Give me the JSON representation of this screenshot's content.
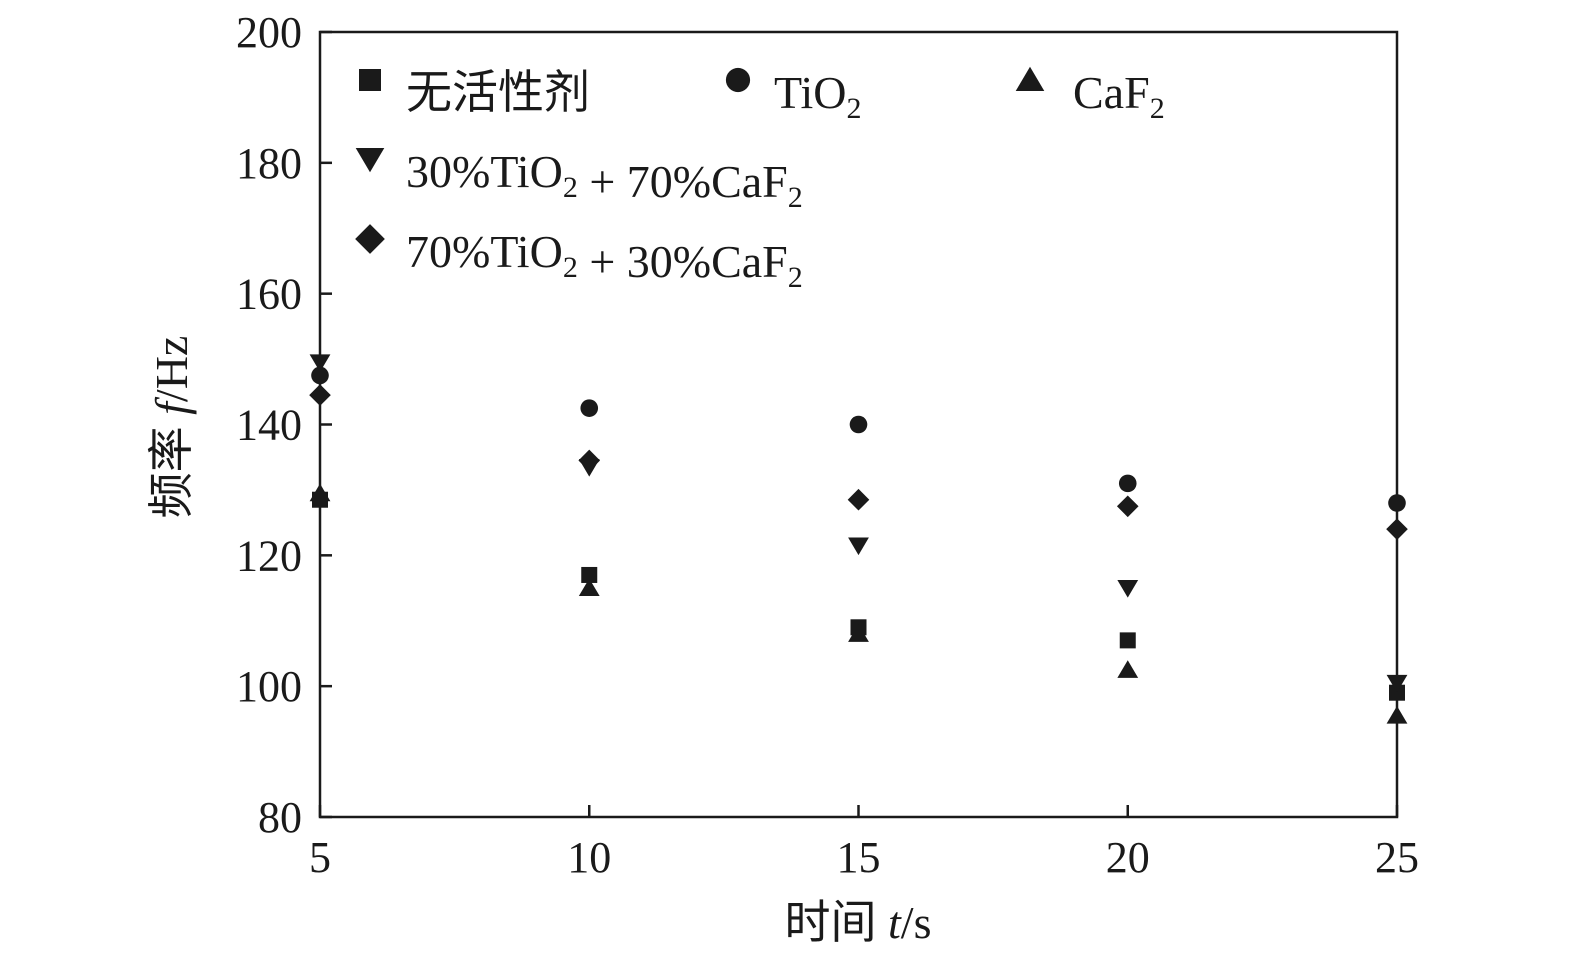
{
  "chart_data": {
    "type": "scatter",
    "title": "",
    "xlabel": {
      "prefix": "时间 ",
      "var": "t",
      "unit": "/s"
    },
    "ylabel": {
      "prefix": "频率 ",
      "var": "f",
      "unit": "/Hz"
    },
    "xlim": [
      5,
      25
    ],
    "ylim": [
      80,
      200
    ],
    "xticks": [
      5,
      10,
      15,
      20,
      25
    ],
    "yticks": [
      80,
      100,
      120,
      140,
      160,
      180,
      200
    ],
    "grid": false,
    "legend_position": "top-left",
    "x": [
      5,
      10,
      15,
      20,
      25
    ],
    "series": [
      {
        "id": "s1",
        "marker": "square",
        "label_parts": [
          {
            "t": "无活性剂"
          }
        ],
        "values": [
          128.5,
          117,
          109,
          107,
          99
        ]
      },
      {
        "id": "s2",
        "marker": "circle",
        "label_parts": [
          {
            "t": "TiO"
          },
          {
            "t": "2",
            "sub": true
          }
        ],
        "values": [
          147.5,
          142.5,
          140,
          131,
          128
        ]
      },
      {
        "id": "s3",
        "marker": "triangle-up",
        "label_parts": [
          {
            "t": "CaF"
          },
          {
            "t": "2",
            "sub": true
          }
        ],
        "values": [
          129.5,
          115,
          108,
          102.5,
          95.5
        ]
      },
      {
        "id": "s4",
        "marker": "triangle-down",
        "label_parts": [
          {
            "t": "30%TiO"
          },
          {
            "t": "2",
            "sub": true
          },
          {
            "t": " + 70%CaF"
          },
          {
            "t": "2",
            "sub": true
          }
        ],
        "values": [
          149.5,
          133.5,
          121.5,
          115,
          100.5
        ]
      },
      {
        "id": "s5",
        "marker": "diamond",
        "label_parts": [
          {
            "t": "70%TiO"
          },
          {
            "t": "2",
            "sub": true
          },
          {
            "t": " + 30%CaF"
          },
          {
            "t": "2",
            "sub": true
          }
        ],
        "values": [
          144.5,
          134.5,
          128.5,
          127.5,
          124
        ]
      }
    ],
    "marker_color": "#1a1a1a",
    "axis_color": "#1a1a1a"
  }
}
